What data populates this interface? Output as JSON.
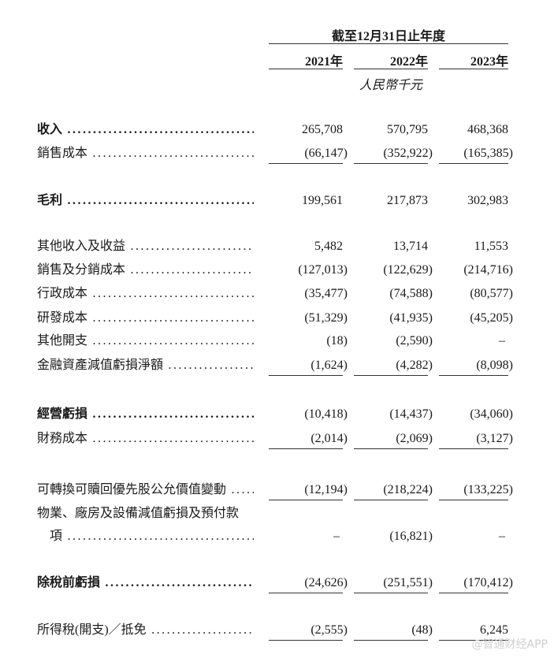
{
  "header": {
    "period_title": "截至12月31日止年度",
    "years": [
      "2021年",
      "2022年",
      "2023年"
    ],
    "unit": "人民幣千元"
  },
  "rows": [
    {
      "label": "收入",
      "bold": true,
      "values": [
        "265,708",
        "570,795",
        "468,368"
      ]
    },
    {
      "label": "銷售成本",
      "bold": false,
      "values": [
        "(66,147)",
        "(352,922)",
        "(165,385)"
      ]
    },
    {
      "label": "毛利",
      "bold": true,
      "values": [
        "199,561",
        "217,873",
        "302,983"
      ]
    },
    {
      "label": "其他收入及收益",
      "bold": false,
      "values": [
        "5,482",
        "13,714",
        "11,553"
      ]
    },
    {
      "label": "銷售及分銷成本",
      "bold": false,
      "values": [
        "(127,013)",
        "(122,629)",
        "(214,716)"
      ]
    },
    {
      "label": "行政成本",
      "bold": false,
      "values": [
        "(35,477)",
        "(74,588)",
        "(80,577)"
      ]
    },
    {
      "label": "研發成本",
      "bold": false,
      "values": [
        "(51,329)",
        "(41,935)",
        "(45,205)"
      ]
    },
    {
      "label": "其他開支",
      "bold": false,
      "values": [
        "(18)",
        "(2,590)",
        "–"
      ]
    },
    {
      "label": "金融資產減值虧損淨額",
      "bold": false,
      "values": [
        "(1,624)",
        "(4,282)",
        "(8,098)"
      ]
    },
    {
      "label": "經營虧損",
      "bold": true,
      "values": [
        "(10,418)",
        "(14,437)",
        "(34,060)"
      ]
    },
    {
      "label": "財務成本",
      "bold": false,
      "values": [
        "(2,014)",
        "(2,069)",
        "(3,127)"
      ]
    },
    {
      "label": "可轉換可贖回優先股公允價值變動",
      "bold": false,
      "values": [
        "(12,194)",
        "(218,224)",
        "(133,225)"
      ]
    },
    {
      "label": "物業、廠房及設備減值虧損及預付款",
      "bold": false,
      "values": [
        "",
        "",
        ""
      ]
    },
    {
      "label": "項",
      "bold": false,
      "values": [
        "–",
        "(16,821)",
        "–"
      ]
    },
    {
      "label": "除稅前虧損",
      "bold": true,
      "values": [
        "(24,626)",
        "(251,551)",
        "(170,412)"
      ]
    },
    {
      "label": "所得稅(開支)／抵免",
      "bold": false,
      "values": [
        "(2,555)",
        "(48)",
        "6,245"
      ]
    }
  ],
  "watermark": "@智通财经APP"
}
